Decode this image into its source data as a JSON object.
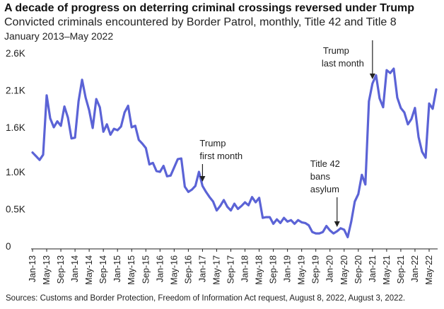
{
  "chart_data": {
    "type": "line",
    "title": "A decade of progress on deterring criminal crossings reversed under Trump",
    "subtitle": "Convicted criminals encountered by Border Patrol, monthly, Title 42 and Title 8",
    "date_range": "January 2013–May 2022",
    "source": "Sources: Customs and Border Protection, Freedom of Information Act request, August 8, 2022, August 3, 2022.",
    "ylim": [
      0,
      2600
    ],
    "y_ticks": [
      {
        "value": 0,
        "label": "0"
      },
      {
        "value": 500,
        "label": "0.5K"
      },
      {
        "value": 1000,
        "label": "1.0K"
      },
      {
        "value": 1600,
        "label": "1.6K"
      },
      {
        "value": 2100,
        "label": "2.1K"
      },
      {
        "value": 2600,
        "label": "2.6K"
      }
    ],
    "x_tick_labels": [
      "Jan-13",
      "May-13",
      "Sep-13",
      "Jan-14",
      "May-14",
      "Sep-14",
      "Jan-15",
      "May-15",
      "Sep-15",
      "Jan-16",
      "May-16",
      "Sep-16",
      "Jan-17",
      "May-17",
      "Sep-17",
      "Jan-18",
      "May-18",
      "Sep-18",
      "Jan-19",
      "May-19",
      "Sep-19",
      "Jan-20",
      "May-20",
      "Sep-20",
      "Jan-21",
      "May-21",
      "Sep-21",
      "Jan-22",
      "May-22"
    ],
    "color": "#5b63d6",
    "series": [
      {
        "name": "Convicted criminals",
        "start": "2013-01",
        "values": [
          1260,
          1210,
          1160,
          1230,
          2030,
          1720,
          1600,
          1680,
          1620,
          1880,
          1730,
          1450,
          1460,
          1950,
          2240,
          2000,
          1830,
          1590,
          1980,
          1870,
          1540,
          1640,
          1500,
          1580,
          1560,
          1610,
          1800,
          1890,
          1600,
          1620,
          1430,
          1380,
          1320,
          1100,
          1120,
          1010,
          1000,
          1080,
          940,
          950,
          1060,
          1170,
          1180,
          800,
          730,
          760,
          810,
          1000,
          810,
          730,
          660,
          600,
          480,
          540,
          620,
          530,
          480,
          570,
          500,
          540,
          590,
          550,
          660,
          590,
          650,
          380,
          390,
          390,
          300,
          360,
          310,
          380,
          330,
          350,
          300,
          350,
          320,
          310,
          280,
          190,
          170,
          170,
          190,
          270,
          210,
          170,
          200,
          240,
          220,
          120,
          330,
          600,
          700,
          960,
          830,
          1950,
          2190,
          2300,
          1990,
          1870,
          2370,
          2330,
          2390,
          2000,
          1860,
          1800,
          1640,
          1710,
          1860,
          1470,
          1270,
          1190,
          1920,
          1850,
          2110
        ]
      }
    ],
    "annotations": [
      {
        "lines": [
          "Trump",
          "first month"
        ],
        "date": "2017-01"
      },
      {
        "lines": [
          "Title 42",
          "bans",
          "asylum"
        ],
        "date": "2020-03"
      },
      {
        "lines": [
          "Trump",
          "last month"
        ],
        "date": "2021-01"
      }
    ]
  }
}
